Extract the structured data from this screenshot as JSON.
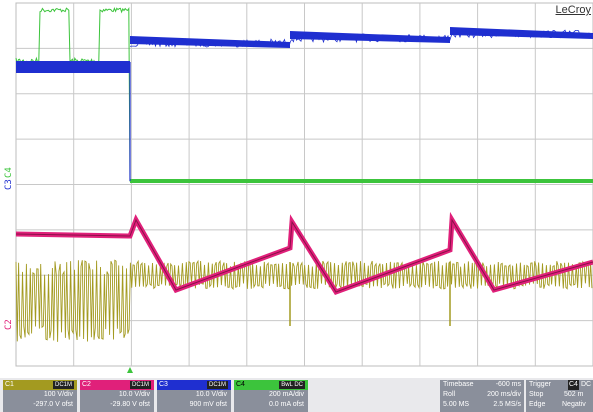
{
  "brand": "LeCroy",
  "colors": {
    "c1": "#a39a20",
    "c2": "#e0207a",
    "c3": "#1f2fd0",
    "c4": "#3cc43c",
    "grid": "#c8c8c8",
    "panel_bg": "#e9e9ec"
  },
  "trace_labels": {
    "c3": "C3",
    "c4": "C4",
    "c2": "C2"
  },
  "channels": [
    {
      "name": "C1",
      "tag": "DC1M",
      "scale": "100 V/div",
      "offset": "-297.0 V ofst"
    },
    {
      "name": "C2",
      "tag": "DC1M",
      "scale": "10.0 V/div",
      "offset": "-29.80 V ofst"
    },
    {
      "name": "C3",
      "tag": "DC1M",
      "scale": "10.0 V/div",
      "offset": "900 mV ofst"
    },
    {
      "name": "C4",
      "tag": "BwL DC",
      "scale": "200 mA/div",
      "offset": "0.0 mA ofst"
    }
  ],
  "timebase": {
    "label": "Timebase",
    "value": "-600 ms",
    "mode": "Roll",
    "rate": "200 ms/div",
    "samples": "5.00 MS",
    "srate": "2.5 MS/s"
  },
  "trigger": {
    "label": "Trigger",
    "src": "C4",
    "coupling": "DC",
    "mode": "Stop",
    "level": "502 m",
    "type": "Edge",
    "slope": "Negativ"
  }
}
